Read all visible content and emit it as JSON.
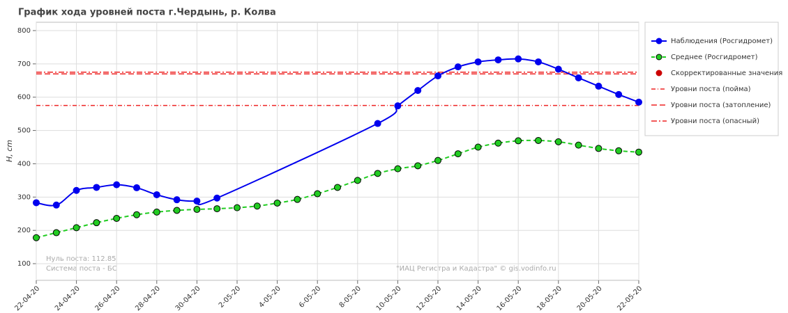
{
  "chart_data": {
    "type": "line",
    "title": "График хода уровней поста г.Чердынь, р. Колва",
    "y_label": "H, cm",
    "annotations": [
      "Нуль поста: 112.85",
      "Система поста - БС",
      "\"ИАЦ Регистра и Кадастра\" © gis.vodinfo.ru"
    ],
    "xlim": [
      "22-04-20",
      "22-05-20"
    ],
    "xticks": [
      "22-04-20",
      "24-04-20",
      "26-04-20",
      "28-04-20",
      "30-04-20",
      "2-05-20",
      "4-05-20",
      "6-05-20",
      "8-05-20",
      "10-05-20",
      "12-05-20",
      "14-05-20",
      "16-05-20",
      "18-05-20",
      "20-05-20",
      "22-05-20"
    ],
    "ylim": [
      50,
      825
    ],
    "yticks": [
      100,
      200,
      300,
      400,
      500,
      600,
      700,
      800
    ],
    "grid": true,
    "legend": "right",
    "series": [
      {
        "name": "Наблюдения (Росгидромет)",
        "color": "#0000ee",
        "x": [
          "22-04-20",
          "23-04-20",
          "24-04-20",
          "25-04-20",
          "26-04-20",
          "27-04-20",
          "28-04-20",
          "29-04-20",
          "30-04-20",
          "1-05-20",
          "9-05-20",
          "10-05-20",
          "11-05-20",
          "12-05-20",
          "13-05-20",
          "14-05-20",
          "15-05-20",
          "16-05-20",
          "17-05-20",
          "18-05-20",
          "19-05-20",
          "20-05-20",
          "21-05-20",
          "22-05-20"
        ],
        "values": [
          283,
          276,
          320,
          329,
          337,
          328,
          307,
          292,
          288,
          297,
          521,
          574,
          620,
          664,
          691,
          706,
          712,
          715,
          706,
          684,
          658,
          633,
          608,
          585
        ]
      },
      {
        "name": "Среднее (Росгидромет)",
        "color": "#22cc22",
        "dash": true,
        "x": [
          "22-04-20",
          "23-04-20",
          "24-04-20",
          "25-04-20",
          "26-04-20",
          "27-04-20",
          "28-04-20",
          "29-04-20",
          "30-04-20",
          "1-05-20",
          "2-05-20",
          "3-05-20",
          "4-05-20",
          "5-05-20",
          "6-05-20",
          "7-05-20",
          "8-05-20",
          "9-05-20",
          "10-05-20",
          "11-05-20",
          "12-05-20",
          "13-05-20",
          "14-05-20",
          "15-05-20",
          "16-05-20",
          "17-05-20",
          "18-05-20",
          "19-05-20",
          "20-05-20",
          "21-05-20",
          "22-05-20"
        ],
        "values": [
          178,
          193,
          208,
          223,
          236,
          247,
          255,
          260,
          263,
          265,
          268,
          273,
          282,
          293,
          310,
          329,
          350,
          371,
          385,
          394,
          410,
          430,
          450,
          462,
          469,
          470,
          466,
          456,
          446,
          439,
          435
        ]
      },
      {
        "name": "Скорректированные значения",
        "color": "#cc0000",
        "x": [],
        "values": []
      }
    ],
    "levels": [
      {
        "name": "Уровни поста (пойма)",
        "value": 575,
        "color": "#ee2222",
        "dash": "6 3 1 3"
      },
      {
        "name": "Уровни поста (затопление)",
        "value": 670,
        "color": "#ee2222",
        "dash": "8 4"
      },
      {
        "name": "Уровни поста (опасный)",
        "value": 675,
        "color": "#ee2222",
        "dash": "8 3 2 3"
      }
    ]
  }
}
